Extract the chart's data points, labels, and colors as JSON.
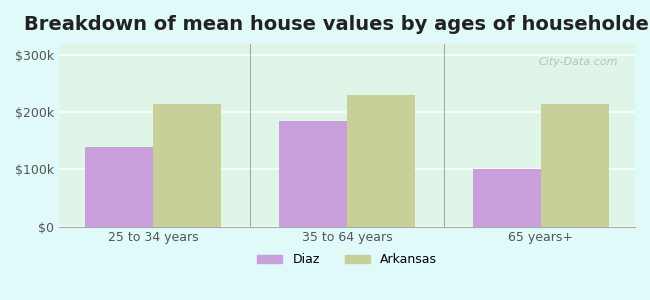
{
  "title": "Breakdown of mean house values by ages of householders",
  "categories": [
    "25 to 34 years",
    "35 to 64 years",
    "65 years+"
  ],
  "diaz_values": [
    140000,
    185000,
    100000
  ],
  "arkansas_values": [
    215000,
    230000,
    215000
  ],
  "diaz_color": "#c9a0dc",
  "arkansas_color": "#c8d09a",
  "ylim": [
    0,
    320000
  ],
  "yticks": [
    0,
    100000,
    200000,
    300000
  ],
  "ytick_labels": [
    "$0",
    "$100k",
    "$200k",
    "$300k"
  ],
  "background_color": "#e0fafa",
  "plot_bg_color_top": "#e8f5e8",
  "plot_bg_color_bottom": "#f0fff0",
  "bar_width": 0.35,
  "legend_labels": [
    "Diaz",
    "Arkansas"
  ],
  "title_fontsize": 14,
  "watermark": "City-Data.com"
}
